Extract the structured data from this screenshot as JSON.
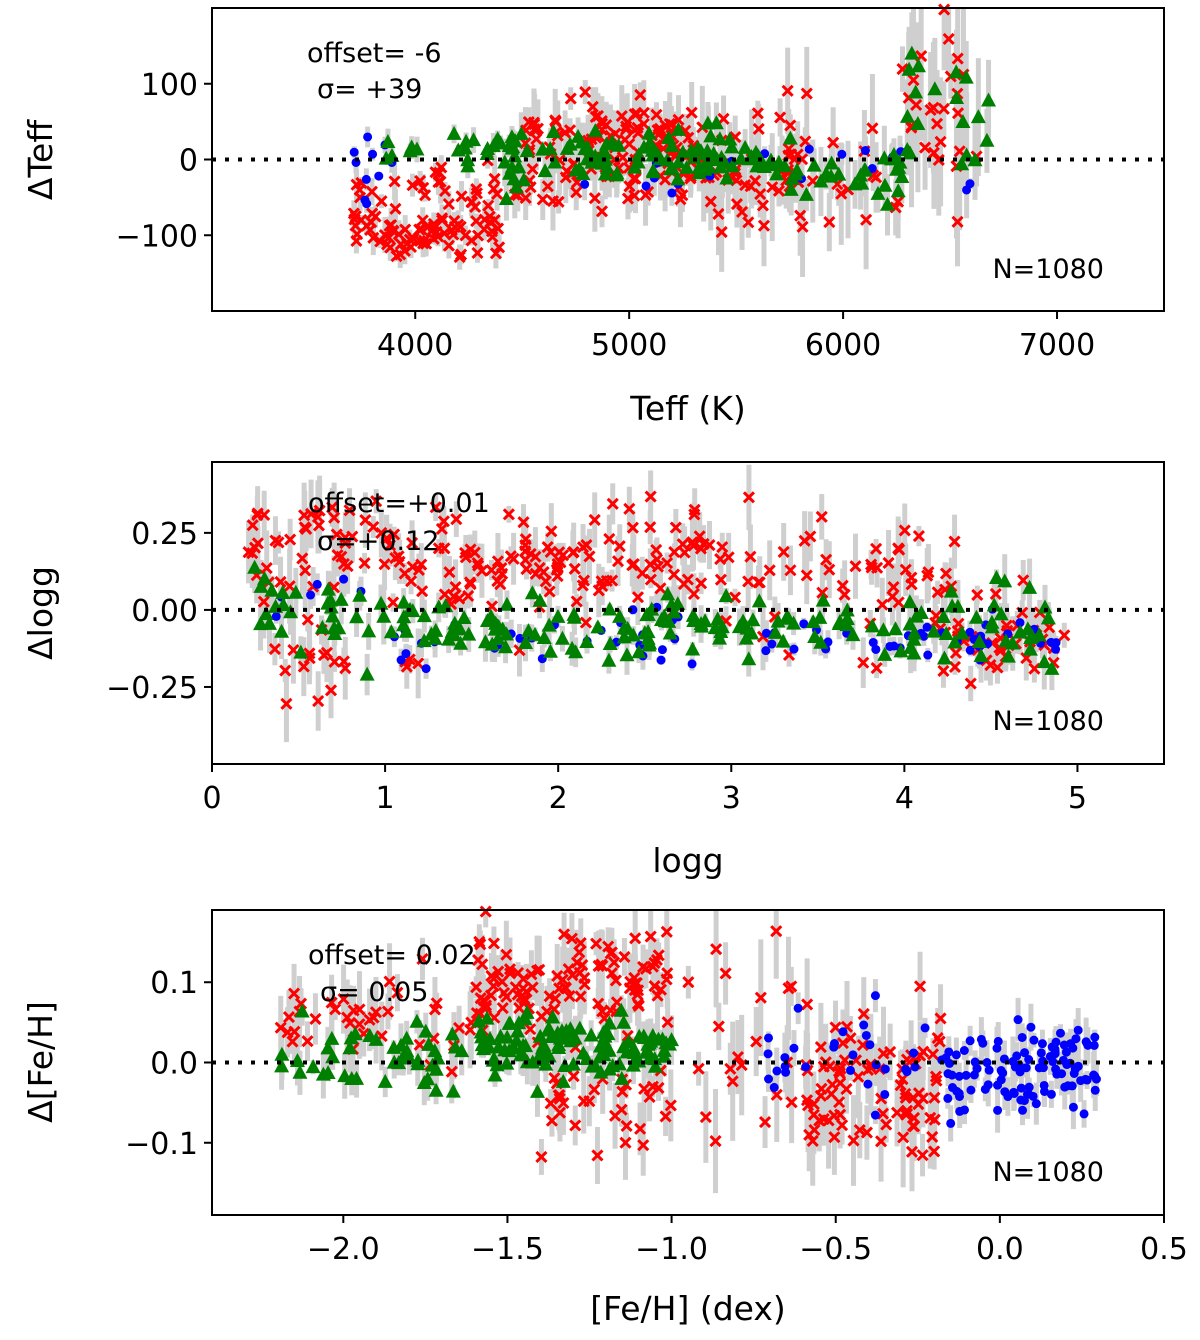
{
  "colors": {
    "giants": "#0000ff",
    "dwarfs": "#ff0000",
    "other": "#008000",
    "errorbar": "#cfcfcf"
  },
  "chart_data": [
    {
      "type": "scatter",
      "id": "teff",
      "xlabel": "Teff (K)",
      "ylabel": "ΔTeff",
      "xlim": [
        3050,
        7500
      ],
      "ylim": [
        -200,
        200
      ],
      "xticks": [
        4000,
        5000,
        6000,
        7000
      ],
      "xtick_labels": [
        "4000",
        "5000",
        "6000",
        "7000"
      ],
      "yticks": [
        -100,
        0,
        100
      ],
      "ytick_labels": [
        "−100",
        "0",
        "100"
      ],
      "offset_text": "offset=  -6",
      "sigma_text": "σ=  +39",
      "n_text": "N=1080",
      "seed": 11,
      "series": [
        {
          "name": "red",
          "marker": "x",
          "color": "#ff0000",
          "clusters": [
            {
              "x0": 3700,
              "x1": 4400,
              "y": -95,
              "sy": 18,
              "n": 75,
              "e": 15
            },
            {
              "x0": 3700,
              "x1": 4800,
              "y": -40,
              "sy": 20,
              "n": 40,
              "e": 20
            },
            {
              "x0": 4500,
              "x1": 5300,
              "y": 35,
              "sy": 25,
              "n": 80,
              "e": 30
            },
            {
              "x0": 4500,
              "x1": 5800,
              "y": -10,
              "sy": 30,
              "n": 70,
              "e": 30
            },
            {
              "x0": 5300,
              "x1": 6300,
              "y": -30,
              "sy": 40,
              "n": 45,
              "e": 45
            },
            {
              "x0": 6300,
              "x1": 6650,
              "y": 70,
              "sy": 60,
              "n": 25,
              "e": 70
            }
          ]
        },
        {
          "name": "blue",
          "marker": "dot",
          "color": "#0000ff",
          "clusters": [
            {
              "x0": 3700,
              "x1": 3900,
              "y": -20,
              "sy": 35,
              "n": 10,
              "e": 10
            },
            {
              "x0": 4700,
              "x1": 6300,
              "y": -10,
              "sy": 15,
              "n": 18,
              "e": 15
            },
            {
              "x0": 6550,
              "x1": 6650,
              "y": -38,
              "sy": 5,
              "n": 2,
              "e": 5
            }
          ]
        },
        {
          "name": "green",
          "marker": "triangle",
          "color": "#008000",
          "clusters": [
            {
              "x0": 3850,
              "x1": 4400,
              "y": 20,
              "sy": 10,
              "n": 20,
              "e": 12
            },
            {
              "x0": 4400,
              "x1": 5700,
              "y": 5,
              "sy": 20,
              "n": 110,
              "e": 20
            },
            {
              "x0": 5700,
              "x1": 6300,
              "y": -15,
              "sy": 25,
              "n": 30,
              "e": 30
            },
            {
              "x0": 6300,
              "x1": 6680,
              "y": 70,
              "sy": 50,
              "n": 18,
              "e": 60
            }
          ]
        }
      ]
    },
    {
      "type": "scatter",
      "id": "logg",
      "xlabel": "logg",
      "ylabel": "Δlogg",
      "xlim": [
        0,
        5.5
      ],
      "ylim": [
        -0.5,
        0.48
      ],
      "xticks": [
        0,
        1,
        2,
        3,
        4,
        5
      ],
      "xtick_labels": [
        "0",
        "1",
        "2",
        "3",
        "4",
        "5"
      ],
      "yticks": [
        -0.25,
        0,
        0.25
      ],
      "ytick_labels": [
        "−0.25",
        "0.00",
        "0.25"
      ],
      "offset_text": "offset=+0.01",
      "sigma_text": "σ=+0.12",
      "n_text": "N=1080",
      "seed": 23,
      "series": [
        {
          "name": "red",
          "marker": "x",
          "color": "#ff0000",
          "clusters": [
            {
              "x0": 0.2,
              "x1": 1.0,
              "y": 0.22,
              "sy": 0.1,
              "n": 45,
              "e": 0.08
            },
            {
              "x0": 0.3,
              "x1": 1.2,
              "y": -0.18,
              "sy": 0.06,
              "n": 20,
              "e": 0.08
            },
            {
              "x0": 1.0,
              "x1": 3.0,
              "y": 0.16,
              "sy": 0.08,
              "n": 130,
              "e": 0.06
            },
            {
              "x0": 3.0,
              "x1": 4.3,
              "y": 0.08,
              "sy": 0.1,
              "n": 50,
              "e": 0.07
            },
            {
              "x0": 4.2,
              "x1": 4.95,
              "y": -0.06,
              "sy": 0.07,
              "n": 45,
              "e": 0.05
            }
          ]
        },
        {
          "name": "blue",
          "marker": "dot",
          "color": "#0000ff",
          "clusters": [
            {
              "x0": 0.3,
              "x1": 1.0,
              "y": 0.05,
              "sy": 0.06,
              "n": 6,
              "e": 0.05
            },
            {
              "x0": 1.0,
              "x1": 2.8,
              "y": -0.1,
              "sy": 0.05,
              "n": 30,
              "e": 0.03
            },
            {
              "x0": 3.0,
              "x1": 4.9,
              "y": -0.1,
              "sy": 0.03,
              "n": 40,
              "e": 0.03
            }
          ]
        },
        {
          "name": "green",
          "marker": "triangle",
          "color": "#008000",
          "clusters": [
            {
              "x0": 0.2,
              "x1": 1.0,
              "y": 0.0,
              "sy": 0.07,
              "n": 30,
              "e": 0.06
            },
            {
              "x0": 1.0,
              "x1": 3.0,
              "y": -0.05,
              "sy": 0.05,
              "n": 90,
              "e": 0.04
            },
            {
              "x0": 3.0,
              "x1": 4.0,
              "y": -0.04,
              "sy": 0.04,
              "n": 30,
              "e": 0.04
            },
            {
              "x0": 4.0,
              "x1": 4.95,
              "y": -0.05,
              "sy": 0.07,
              "n": 40,
              "e": 0.06
            }
          ]
        }
      ]
    },
    {
      "type": "scatter",
      "id": "feh",
      "xlabel": "[Fe/H] (dex)",
      "ylabel": "Δ[Fe/H]",
      "xlim": [
        -2.4,
        0.5
      ],
      "ylim": [
        -0.19,
        0.19
      ],
      "xticks": [
        -2.0,
        -1.5,
        -1.0,
        -0.5,
        0.0,
        0.5
      ],
      "xtick_labels": [
        "−2.0",
        "−1.5",
        "−1.0",
        "−0.5",
        "0.0",
        "0.5"
      ],
      "yticks": [
        -0.1,
        0.0,
        0.1
      ],
      "ytick_labels": [
        "−0.1",
        "0.0",
        "0.1"
      ],
      "offset_text": "offset= 0.02",
      "sigma_text": "σ= 0.05",
      "n_text": "N=1080",
      "seed": 37,
      "series": [
        {
          "name": "red",
          "marker": "x",
          "color": "#ff0000",
          "clusters": [
            {
              "x0": -2.2,
              "x1": -1.5,
              "y": 0.05,
              "sy": 0.03,
              "n": 40,
              "e": 0.03
            },
            {
              "x0": -1.6,
              "x1": -1.0,
              "y": 0.1,
              "sy": 0.03,
              "n": 110,
              "e": 0.03
            },
            {
              "x0": -1.4,
              "x1": -1.0,
              "y": -0.05,
              "sy": 0.04,
              "n": 35,
              "e": 0.03
            },
            {
              "x0": -0.95,
              "x1": -0.6,
              "y": 0.02,
              "sy": 0.07,
              "n": 20,
              "e": 0.05
            },
            {
              "x0": -0.6,
              "x1": -0.18,
              "y": -0.03,
              "sy": 0.05,
              "n": 90,
              "e": 0.04
            }
          ]
        },
        {
          "name": "blue",
          "marker": "dot",
          "color": "#0000ff",
          "clusters": [
            {
              "x0": -0.8,
              "x1": -0.2,
              "y": 0.0,
              "sy": 0.03,
              "n": 30,
              "e": 0.02
            },
            {
              "x0": -0.18,
              "x1": 0.3,
              "y": -0.01,
              "sy": 0.025,
              "n": 110,
              "e": 0.02
            }
          ]
        },
        {
          "name": "green",
          "marker": "triangle",
          "color": "#008000",
          "clusters": [
            {
              "x0": -2.2,
              "x1": -1.6,
              "y": 0.01,
              "sy": 0.025,
              "n": 45,
              "e": 0.02
            },
            {
              "x0": -1.6,
              "x1": -1.0,
              "y": 0.02,
              "sy": 0.02,
              "n": 110,
              "e": 0.02
            }
          ]
        }
      ]
    }
  ]
}
